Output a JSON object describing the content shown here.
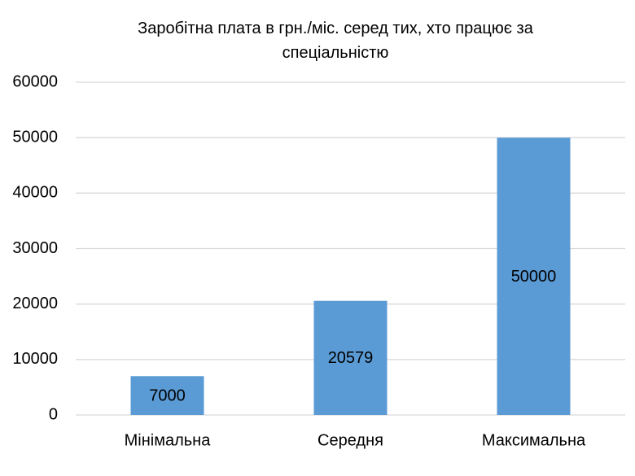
{
  "chart_data": {
    "type": "bar",
    "title": "Заробітна плата в грн./міс. серед тих, хто працює за спеціальністю",
    "categories": [
      "Мінімальна",
      "Середня",
      "Максимальна"
    ],
    "values": [
      7000,
      20579,
      50000
    ],
    "color": "#5b9bd5",
    "ylim": [
      0,
      60000
    ],
    "yticks": [
      0,
      10000,
      20000,
      30000,
      40000,
      50000,
      60000
    ],
    "grid": true
  }
}
